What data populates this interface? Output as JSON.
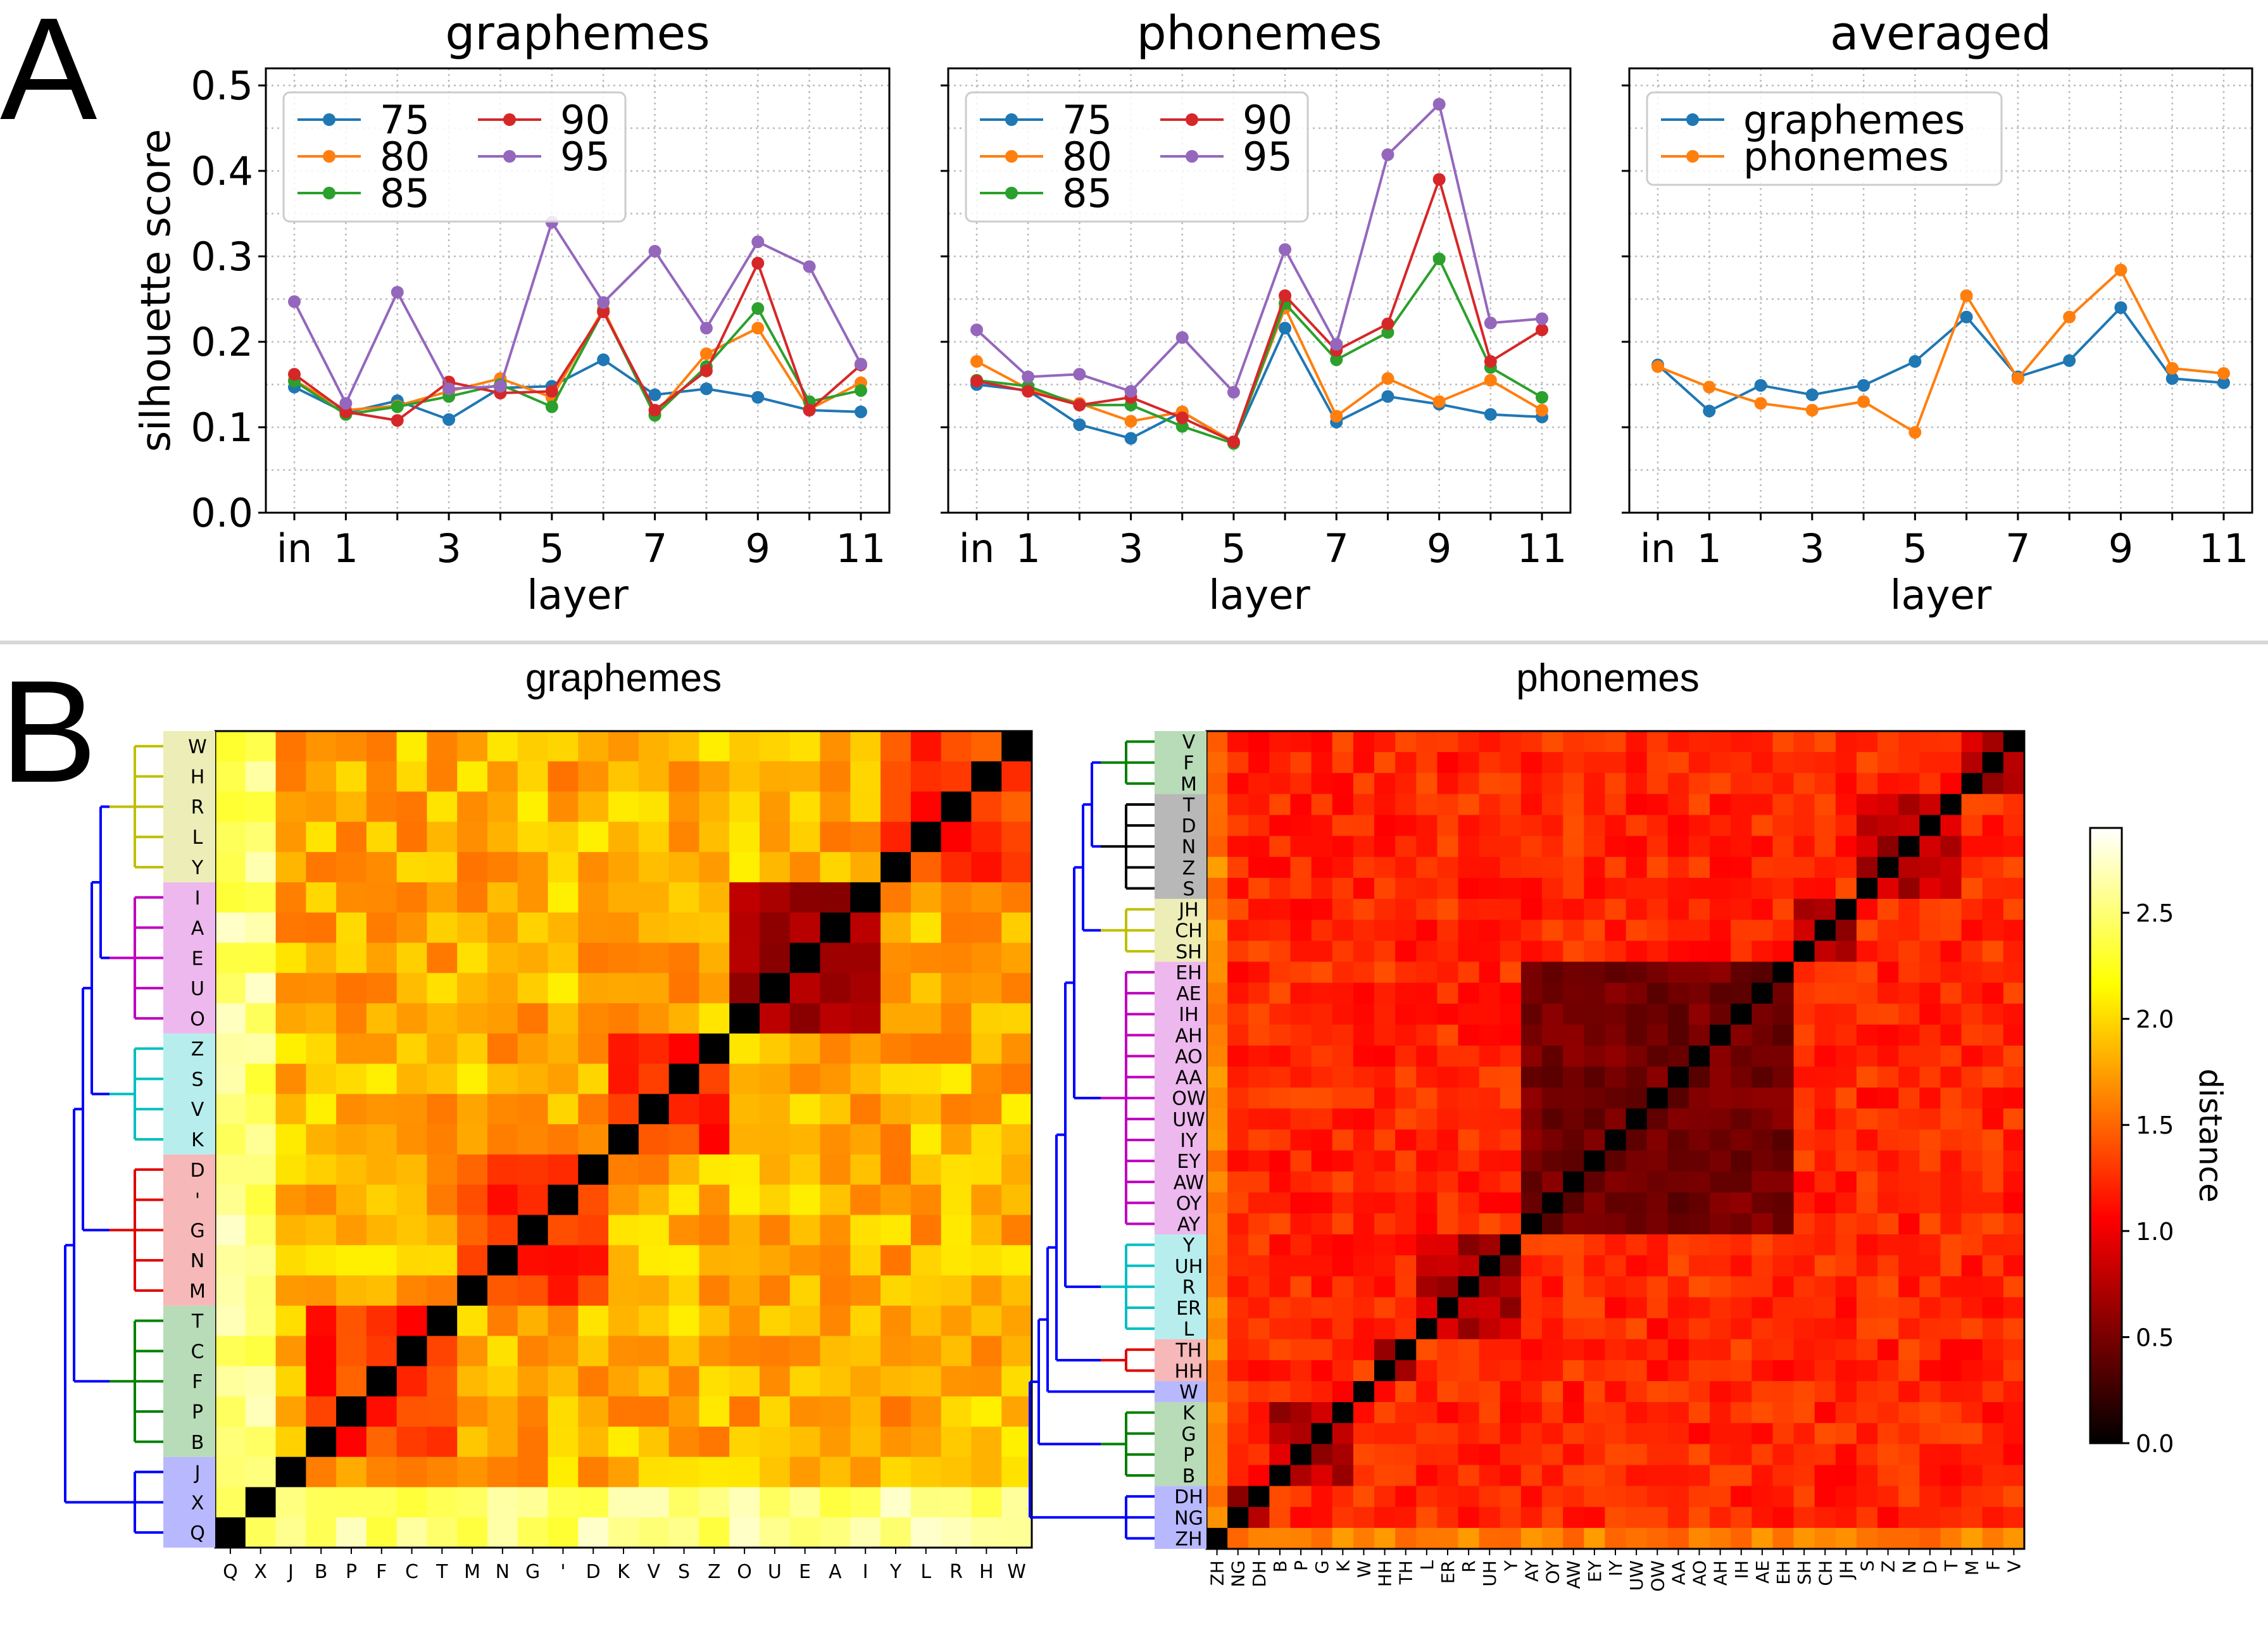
{
  "panels": {
    "a_label": "A",
    "b_label": "B"
  },
  "chart_data": [
    {
      "type": "line",
      "title": "graphemes",
      "xlabel": "layer",
      "ylabel": "silhouette score",
      "x": [
        "in",
        "1",
        "2",
        "3",
        "4",
        "5",
        "6",
        "7",
        "8",
        "9",
        "10",
        "11"
      ],
      "xticks": [
        "in",
        "1",
        "3",
        "5",
        "7",
        "9",
        "11"
      ],
      "ylim": [
        0,
        0.52
      ],
      "yticks": [
        "0.0",
        "0.1",
        "0.2",
        "0.3",
        "0.4",
        "0.5"
      ],
      "grid": true,
      "legend": "top-left",
      "series": [
        {
          "name": "75",
          "color": "#1f77b4",
          "values": [
            0.147,
            0.117,
            0.131,
            0.109,
            0.146,
            0.148,
            0.179,
            0.138,
            0.145,
            0.135,
            0.12,
            0.118
          ]
        },
        {
          "name": "80",
          "color": "#ff7f0e",
          "values": [
            0.155,
            0.12,
            0.125,
            0.142,
            0.157,
            0.135,
            0.238,
            0.115,
            0.186,
            0.216,
            0.121,
            0.152
          ]
        },
        {
          "name": "85",
          "color": "#2ca02c",
          "values": [
            0.154,
            0.115,
            0.124,
            0.136,
            0.15,
            0.124,
            0.236,
            0.114,
            0.171,
            0.239,
            0.13,
            0.143
          ]
        },
        {
          "name": "90",
          "color": "#d62728",
          "values": [
            0.162,
            0.118,
            0.108,
            0.153,
            0.14,
            0.142,
            0.235,
            0.12,
            0.166,
            0.292,
            0.12,
            0.173
          ]
        },
        {
          "name": "95",
          "color": "#9467bd",
          "values": [
            0.247,
            0.128,
            0.258,
            0.145,
            0.148,
            0.34,
            0.246,
            0.306,
            0.216,
            0.317,
            0.288,
            0.174
          ]
        }
      ]
    },
    {
      "type": "line",
      "title": "phonemes",
      "xlabel": "layer",
      "ylabel": "",
      "x": [
        "in",
        "1",
        "2",
        "3",
        "4",
        "5",
        "6",
        "7",
        "8",
        "9",
        "10",
        "11"
      ],
      "xticks": [
        "in",
        "1",
        "3",
        "5",
        "7",
        "9",
        "11"
      ],
      "ylim": [
        0,
        0.52
      ],
      "grid": true,
      "legend": "top-left",
      "series": [
        {
          "name": "75",
          "color": "#1f77b4",
          "values": [
            0.15,
            0.143,
            0.103,
            0.087,
            0.118,
            0.082,
            0.216,
            0.106,
            0.136,
            0.127,
            0.115,
            0.112
          ]
        },
        {
          "name": "80",
          "color": "#ff7f0e",
          "values": [
            0.177,
            0.145,
            0.128,
            0.107,
            0.118,
            0.083,
            0.24,
            0.113,
            0.157,
            0.13,
            0.155,
            0.12
          ]
        },
        {
          "name": "85",
          "color": "#2ca02c",
          "values": [
            0.155,
            0.148,
            0.126,
            0.126,
            0.101,
            0.081,
            0.245,
            0.179,
            0.211,
            0.297,
            0.17,
            0.135
          ]
        },
        {
          "name": "90",
          "color": "#d62728",
          "values": [
            0.154,
            0.142,
            0.126,
            0.135,
            0.111,
            0.083,
            0.254,
            0.19,
            0.221,
            0.39,
            0.177,
            0.214
          ]
        },
        {
          "name": "95",
          "color": "#9467bd",
          "values": [
            0.214,
            0.159,
            0.162,
            0.142,
            0.205,
            0.141,
            0.308,
            0.197,
            0.419,
            0.478,
            0.222,
            0.227
          ]
        }
      ]
    },
    {
      "type": "line",
      "title": "averaged",
      "xlabel": "layer",
      "ylabel": "",
      "x": [
        "in",
        "1",
        "2",
        "3",
        "4",
        "5",
        "6",
        "7",
        "8",
        "9",
        "10",
        "11"
      ],
      "xticks": [
        "in",
        "1",
        "3",
        "5",
        "7",
        "9",
        "11"
      ],
      "ylim": [
        0,
        0.52
      ],
      "grid": true,
      "legend": "top-left",
      "series": [
        {
          "name": "graphemes",
          "color": "#1f77b4",
          "values": [
            0.173,
            0.119,
            0.149,
            0.138,
            0.149,
            0.177,
            0.229,
            0.159,
            0.178,
            0.24,
            0.157,
            0.152
          ]
        },
        {
          "name": "phonemes",
          "color": "#ff7f0e",
          "values": [
            0.171,
            0.147,
            0.128,
            0.12,
            0.13,
            0.094,
            0.254,
            0.157,
            0.229,
            0.284,
            0.169,
            0.163
          ]
        }
      ]
    },
    {
      "type": "heatmap",
      "title": "graphemes",
      "labels": [
        "Q",
        "X",
        "J",
        "B",
        "P",
        "F",
        "C",
        "T",
        "M",
        "N",
        "G",
        "'",
        "D",
        "K",
        "V",
        "S",
        "Z",
        "O",
        "U",
        "E",
        "A",
        "I",
        "Y",
        "L",
        "R",
        "H",
        "W"
      ],
      "groups": [
        {
          "color": "#0000ff",
          "members": [
            "Q",
            "X",
            "J"
          ]
        },
        {
          "color": "#008000",
          "members": [
            "B",
            "P",
            "F",
            "C",
            "T"
          ]
        },
        {
          "color": "#e00000",
          "members": [
            "M",
            "N",
            "G",
            "'",
            "D"
          ]
        },
        {
          "color": "#00bfbf",
          "members": [
            "K",
            "V",
            "S",
            "Z"
          ]
        },
        {
          "color": "#bf00bf",
          "members": [
            "O",
            "U",
            "E",
            "A",
            "I"
          ]
        },
        {
          "color": "#bfbf00",
          "members": [
            "Y",
            "L",
            "R",
            "H",
            "W"
          ]
        }
      ],
      "colorbar_range": [
        0,
        2.9
      ],
      "cmap": "hot"
    },
    {
      "type": "heatmap",
      "title": "phonemes",
      "labels": [
        "ZH",
        "NG",
        "DH",
        "B",
        "P",
        "G",
        "K",
        "W",
        "HH",
        "TH",
        "L",
        "ER",
        "R",
        "UH",
        "Y",
        "AY",
        "OY",
        "AW",
        "EY",
        "IY",
        "UW",
        "OW",
        "AA",
        "AO",
        "AH",
        "IH",
        "AE",
        "EH",
        "SH",
        "CH",
        "JH",
        "S",
        "Z",
        "N",
        "D",
        "T",
        "M",
        "F",
        "V"
      ],
      "groups": [
        {
          "color": "#0000ff",
          "members": [
            "ZH",
            "NG",
            "DH"
          ]
        },
        {
          "color": "#008000",
          "members": [
            "B",
            "P",
            "G",
            "K"
          ]
        },
        {
          "color": "#0000ff",
          "members": [
            "W"
          ]
        },
        {
          "color": "#e00000",
          "members": [
            "HH",
            "TH"
          ]
        },
        {
          "color": "#00bfbf",
          "members": [
            "L",
            "ER",
            "R",
            "UH",
            "Y"
          ]
        },
        {
          "color": "#bf00bf",
          "members": [
            "AY",
            "OY",
            "AW",
            "EY",
            "IY",
            "UW",
            "OW",
            "AA",
            "AO",
            "AH",
            "IH",
            "AE",
            "EH"
          ]
        },
        {
          "color": "#bfbf00",
          "members": [
            "SH",
            "CH",
            "JH"
          ]
        },
        {
          "color": "#000000",
          "members": [
            "S",
            "Z",
            "N",
            "D",
            "T"
          ]
        },
        {
          "color": "#008000",
          "members": [
            "M",
            "F",
            "V"
          ]
        }
      ],
      "colorbar": {
        "label": "distance",
        "range": [
          0,
          2.9
        ],
        "ticks": [
          "0.0",
          "0.5",
          "1.0",
          "1.5",
          "2.0",
          "2.5"
        ]
      },
      "cmap": "hot"
    }
  ]
}
